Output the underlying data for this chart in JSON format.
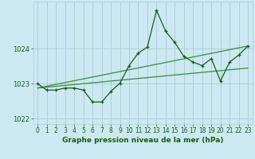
{
  "title": "Graphe pression niveau de la mer (hPa)",
  "background_color": "#cce8f0",
  "grid_color": "#aaccd8",
  "line_color_dark": "#1a5c1a",
  "line_color_light": "#3a8c3a",
  "xlim": [
    -0.5,
    23.5
  ],
  "ylim": [
    1021.85,
    1025.35
  ],
  "yticks": [
    1022,
    1023,
    1024
  ],
  "xticks": [
    0,
    1,
    2,
    3,
    4,
    5,
    6,
    7,
    8,
    9,
    10,
    11,
    12,
    13,
    14,
    15,
    16,
    17,
    18,
    19,
    20,
    21,
    22,
    23
  ],
  "series1_x": [
    0,
    1,
    2,
    3,
    4,
    5,
    6,
    7,
    8,
    9,
    10,
    11,
    12,
    13,
    14,
    15,
    16,
    17,
    18,
    19,
    20,
    21,
    22,
    23
  ],
  "series1_y": [
    1023.0,
    1022.82,
    1022.82,
    1022.88,
    1022.88,
    1022.82,
    1022.48,
    1022.48,
    1022.78,
    1023.02,
    1023.52,
    1023.88,
    1024.05,
    1025.1,
    1024.5,
    1024.18,
    1023.78,
    1023.62,
    1023.52,
    1023.72,
    1023.08,
    1023.62,
    1023.82,
    1024.08
  ],
  "series2_x": [
    0,
    23
  ],
  "series2_y": [
    1022.88,
    1023.45
  ],
  "series3_x": [
    0,
    23
  ],
  "series3_y": [
    1022.88,
    1024.08
  ],
  "tick_fontsize": 5.5,
  "title_fontsize": 6.5
}
